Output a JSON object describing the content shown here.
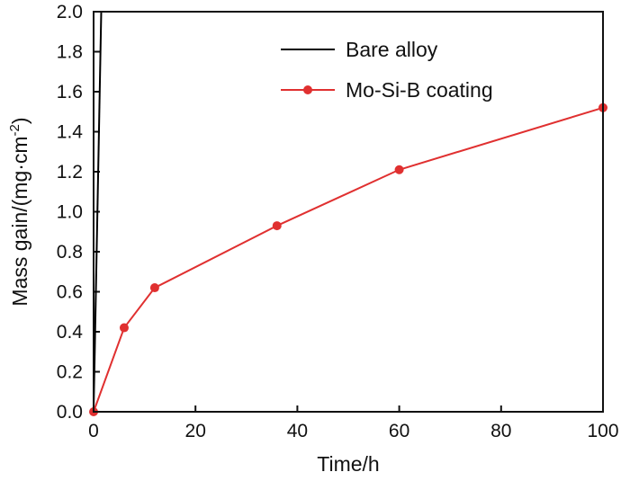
{
  "chart_data": {
    "type": "line",
    "xlabel": "Time/h",
    "ylabel": "Mass gain/(mg·cm",
    "ylabel_sup": "-2",
    "ylabel_close": ")",
    "xlim": [
      0,
      100
    ],
    "ylim": [
      0,
      2.0
    ],
    "xticks": [
      "0",
      "20",
      "40",
      "60",
      "80",
      "100"
    ],
    "yticks": [
      "0.0",
      "0.2",
      "0.4",
      "0.6",
      "0.8",
      "1.0",
      "1.2",
      "1.4",
      "1.6",
      "1.8",
      "2.0"
    ],
    "grid": false,
    "legend_position": "top-right",
    "series": [
      {
        "name": "Bare alloy",
        "color": "#000000",
        "marker": "none",
        "x": [
          0,
          1.5
        ],
        "y": [
          0,
          2.0
        ]
      },
      {
        "name": "Mo-Si-B coating",
        "color": "#e03030",
        "marker": "circle",
        "x": [
          0,
          6,
          12,
          36,
          60,
          100
        ],
        "y": [
          0.0,
          0.42,
          0.62,
          0.93,
          1.21,
          1.52
        ]
      }
    ]
  }
}
